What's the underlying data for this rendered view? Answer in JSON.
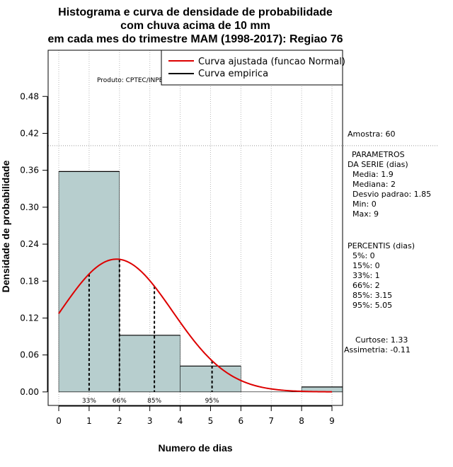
{
  "chart_data": {
    "type": "bar",
    "title_lines": [
      "Histograma e curva de densidade de probabilidade",
      "com chuva acima de 10 mm",
      "em cada mes do trimestre MAM (1998-2017): Regiao 76"
    ],
    "xlabel": "Numero de dias",
    "ylabel": "Densidade de probabilidade",
    "xlim": [
      -0.35,
      9.35
    ],
    "ylim": [
      -0.022,
      0.555
    ],
    "x_ticks": [
      "0",
      "1",
      "2",
      "3",
      "4",
      "5",
      "6",
      "7",
      "8",
      "9"
    ],
    "y_ticks": [
      "0.00",
      "0.06",
      "0.12",
      "0.18",
      "0.24",
      "0.30",
      "0.36",
      "0.42",
      "0.48"
    ],
    "bins": [
      {
        "from": 0,
        "to": 2,
        "density": 0.358
      },
      {
        "from": 2,
        "to": 4,
        "density": 0.092
      },
      {
        "from": 4,
        "to": 6,
        "density": 0.042
      },
      {
        "from": 6,
        "to": 8,
        "density": 0.0
      },
      {
        "from": 8,
        "to": 10,
        "density": 0.008
      }
    ],
    "fitted_curve": {
      "name": "Curva ajustada (funcao Normal)",
      "color": "#dd0000",
      "mean": 1.9,
      "sd": 1.85,
      "x_range": [
        0,
        9
      ]
    },
    "empirical_curve": {
      "name": "Curva empirica",
      "color": "#000000"
    },
    "reference_line_y": 0.4,
    "percentile_lines": [
      {
        "label": "33%",
        "x": 1.0
      },
      {
        "label": "66%",
        "x": 2.0
      },
      {
        "label": "85%",
        "x": 3.15
      },
      {
        "label": "95%",
        "x": 5.05
      }
    ],
    "bar_color": "#b7cece",
    "watermark": "Produto: CPTEC/INPE"
  },
  "side_panel": {
    "sample": "Amostra: 60",
    "params_title_1": "PARAMETROS",
    "params_title_2": "DA SERIE (dias)",
    "params": [
      "Media: 1.9",
      "Mediana: 2",
      "Desvio padrao: 1.85",
      "Min: 0",
      "Max: 9"
    ],
    "percentis_title": "PERCENTIS (dias)",
    "percentis": [
      "5%: 0",
      "15%: 0",
      "33%: 1",
      "66%: 2",
      "85%: 3.15",
      "95%: 5.05"
    ],
    "curtose": "Curtose: 1.33",
    "assimetria": "Assimetria: -0.11"
  }
}
